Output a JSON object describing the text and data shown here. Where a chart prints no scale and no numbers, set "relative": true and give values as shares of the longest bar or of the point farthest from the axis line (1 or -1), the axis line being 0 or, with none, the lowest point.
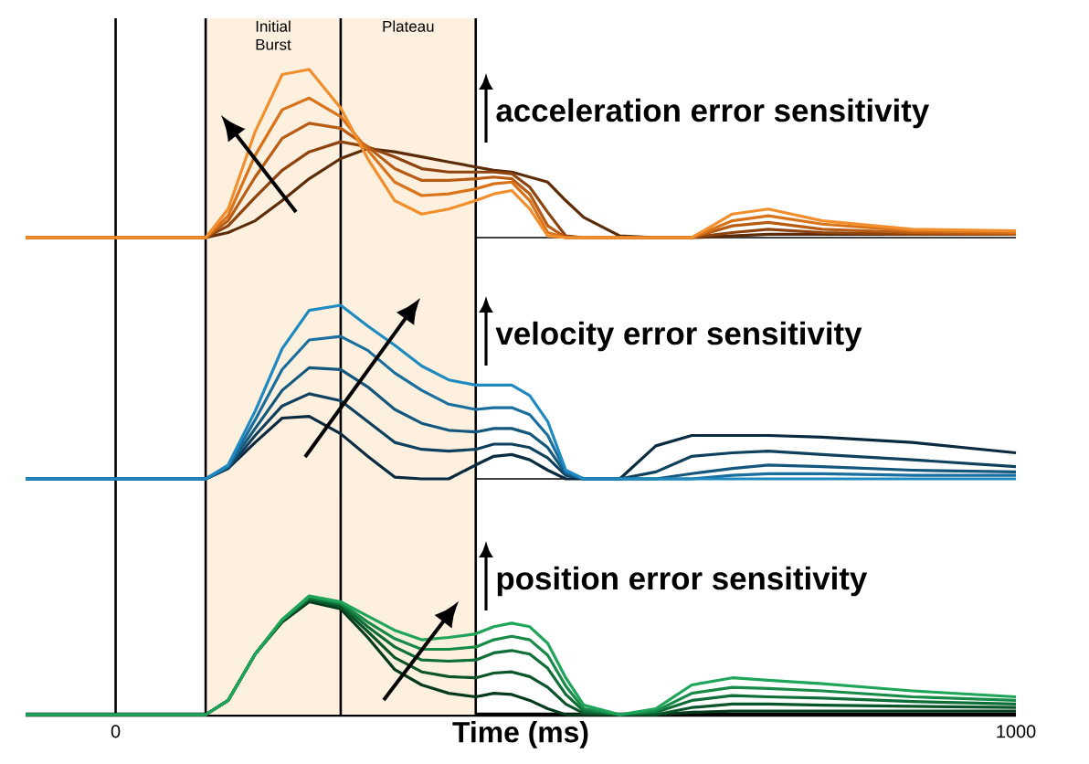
{
  "chart_data": [
    {
      "type": "line",
      "relative": true,
      "xlim": [
        -100,
        1000
      ],
      "tick_labels": false,
      "x": [
        -100,
        100,
        125,
        155,
        185,
        215,
        250,
        280,
        310,
        340,
        370,
        400,
        420,
        440,
        460,
        480,
        500,
        520,
        560,
        600,
        640,
        685,
        725,
        785,
        885,
        1000
      ],
      "series": [
        {
          "color": "#5c2c08",
          "values": [
            0,
            0,
            0.03,
            0.1,
            0.22,
            0.35,
            0.47,
            0.53,
            0.51,
            0.48,
            0.45,
            0.42,
            0.4,
            0.39,
            0.36,
            0.33,
            0.22,
            0.12,
            0.01,
            0,
            0,
            0.01,
            0.02,
            0.02,
            0.02,
            0.02
          ]
        },
        {
          "color": "#8f4410",
          "values": [
            0,
            0,
            0.07,
            0.24,
            0.4,
            0.51,
            0.57,
            0.54,
            0.48,
            0.41,
            0.39,
            0.39,
            0.39,
            0.38,
            0.3,
            0.15,
            0.01,
            0,
            0,
            0,
            0,
            0.03,
            0.05,
            0.03,
            0.02,
            0.02
          ]
        },
        {
          "color": "#b85c14",
          "values": [
            0,
            0,
            0.1,
            0.36,
            0.59,
            0.68,
            0.65,
            0.54,
            0.41,
            0.34,
            0.34,
            0.35,
            0.36,
            0.35,
            0.26,
            0.07,
            0,
            0,
            0,
            0,
            0,
            0.07,
            0.09,
            0.05,
            0.03,
            0.02
          ]
        },
        {
          "color": "#d9731a",
          "values": [
            0,
            0,
            0.13,
            0.49,
            0.76,
            0.83,
            0.72,
            0.52,
            0.33,
            0.25,
            0.26,
            0.29,
            0.32,
            0.33,
            0.22,
            0.03,
            0,
            0,
            0,
            0,
            0,
            0.1,
            0.13,
            0.08,
            0.04,
            0.03
          ]
        },
        {
          "color": "#f28e2b",
          "values": [
            0,
            0,
            0.17,
            0.63,
            0.97,
            1,
            0.77,
            0.47,
            0.22,
            0.14,
            0.17,
            0.22,
            0.26,
            0.28,
            0.17,
            0.01,
            0,
            0,
            0,
            0,
            0,
            0.14,
            0.17,
            0.1,
            0.05,
            0.04
          ]
        }
      ],
      "bands": [
        {
          "axis": "x",
          "from": 100,
          "to": 250,
          "label": "Initial Burst",
          "color": "#fdf0df"
        },
        {
          "axis": "x",
          "from": 250,
          "to": 400,
          "label": "Plateau",
          "color": "#fdf0df"
        }
      ],
      "ref_lines": [
        {
          "axis": "x",
          "value": 0
        },
        {
          "axis": "x",
          "value": 100
        },
        {
          "axis": "x",
          "value": 250
        },
        {
          "axis": "x",
          "value": 400
        }
      ],
      "annotations": [
        "acceleration error sensitivity"
      ]
    },
    {
      "type": "line",
      "relative": true,
      "xlim": [
        -100,
        1000
      ],
      "tick_labels": false,
      "x": [
        -100,
        100,
        125,
        155,
        185,
        215,
        250,
        280,
        310,
        340,
        370,
        400,
        420,
        440,
        460,
        480,
        500,
        520,
        560,
        600,
        640,
        685,
        725,
        785,
        885,
        1000
      ],
      "series": [
        {
          "color": "#0a2a40",
          "values": [
            0,
            0,
            0.06,
            0.21,
            0.35,
            0.36,
            0.26,
            0.13,
            0.01,
            0,
            0,
            0.08,
            0.13,
            0.14,
            0.11,
            0.05,
            0,
            0,
            0,
            0.19,
            0.25,
            0.25,
            0.25,
            0.24,
            0.21,
            0.15
          ]
        },
        {
          "color": "#0f405e",
          "values": [
            0,
            0,
            0.06,
            0.25,
            0.42,
            0.49,
            0.45,
            0.33,
            0.21,
            0.17,
            0.16,
            0.17,
            0.2,
            0.2,
            0.18,
            0.12,
            0.02,
            0,
            0,
            0.04,
            0.13,
            0.15,
            0.16,
            0.14,
            0.11,
            0.07
          ]
        },
        {
          "color": "#14577d",
          "values": [
            0,
            0,
            0.07,
            0.29,
            0.51,
            0.64,
            0.63,
            0.53,
            0.4,
            0.32,
            0.28,
            0.27,
            0.29,
            0.29,
            0.26,
            0.18,
            0.03,
            0,
            0,
            0,
            0.03,
            0.06,
            0.08,
            0.07,
            0.05,
            0.04
          ]
        },
        {
          "color": "#1a6e9e",
          "values": [
            0,
            0,
            0.07,
            0.34,
            0.63,
            0.8,
            0.82,
            0.74,
            0.61,
            0.51,
            0.43,
            0.4,
            0.41,
            0.41,
            0.37,
            0.25,
            0.04,
            0,
            0,
            0,
            0,
            0.02,
            0.03,
            0.03,
            0.02,
            0.02
          ]
        },
        {
          "color": "#1f8ac0",
          "values": [
            0,
            0,
            0.08,
            0.39,
            0.75,
            0.97,
            1,
            0.88,
            0.77,
            0.65,
            0.57,
            0.54,
            0.54,
            0.54,
            0.48,
            0.33,
            0.05,
            0,
            0,
            0,
            0,
            0,
            0,
            0,
            0,
            0
          ]
        }
      ],
      "bands": [
        {
          "axis": "x",
          "from": 100,
          "to": 250,
          "color": "#fdf0df"
        },
        {
          "axis": "x",
          "from": 250,
          "to": 400,
          "color": "#fdf0df"
        }
      ],
      "ref_lines": [
        {
          "axis": "x",
          "value": 0
        },
        {
          "axis": "x",
          "value": 100
        },
        {
          "axis": "x",
          "value": 250
        },
        {
          "axis": "x",
          "value": 400
        }
      ],
      "annotations": [
        "velocity error sensitivity"
      ]
    },
    {
      "type": "line",
      "relative": true,
      "xlim": [
        -100,
        1000
      ],
      "xticks": [
        0,
        1000
      ],
      "tick_labels": "x",
      "xlabel": "Time (ms)",
      "x": [
        -100,
        100,
        125,
        155,
        185,
        215,
        250,
        280,
        310,
        340,
        370,
        400,
        420,
        440,
        460,
        480,
        500,
        520,
        560,
        600,
        640,
        685,
        725,
        785,
        885,
        1000
      ],
      "series": [
        {
          "color": "#053b1c",
          "values": [
            0,
            0,
            0.12,
            0.51,
            0.78,
            0.95,
            0.89,
            0.65,
            0.38,
            0.25,
            0.18,
            0.15,
            0.18,
            0.17,
            0.12,
            0.05,
            0,
            0,
            0,
            0,
            0.02,
            0.03,
            0.03,
            0.03,
            0.03,
            0.03
          ]
        },
        {
          "color": "#0a5429",
          "values": [
            0,
            0,
            0.12,
            0.51,
            0.79,
            0.97,
            0.91,
            0.7,
            0.48,
            0.36,
            0.32,
            0.31,
            0.35,
            0.36,
            0.32,
            0.23,
            0.09,
            0.01,
            0,
            0,
            0.06,
            0.09,
            0.09,
            0.08,
            0.07,
            0.06
          ]
        },
        {
          "color": "#0f6e38",
          "values": [
            0,
            0,
            0.12,
            0.51,
            0.79,
            0.98,
            0.93,
            0.74,
            0.57,
            0.46,
            0.45,
            0.46,
            0.52,
            0.54,
            0.51,
            0.39,
            0.17,
            0.03,
            0,
            0.02,
            0.12,
            0.16,
            0.15,
            0.14,
            0.11,
            0.09
          ]
        },
        {
          "color": "#178a48",
          "values": [
            0,
            0,
            0.12,
            0.51,
            0.8,
            0.99,
            0.94,
            0.78,
            0.64,
            0.55,
            0.55,
            0.57,
            0.63,
            0.66,
            0.63,
            0.5,
            0.24,
            0.05,
            0,
            0.03,
            0.18,
            0.23,
            0.22,
            0.2,
            0.15,
            0.12
          ]
        },
        {
          "color": "#1fa55a",
          "values": [
            0,
            0,
            0.12,
            0.51,
            0.8,
            1,
            0.95,
            0.83,
            0.71,
            0.63,
            0.65,
            0.68,
            0.74,
            0.77,
            0.74,
            0.6,
            0.31,
            0.08,
            0,
            0.05,
            0.25,
            0.31,
            0.29,
            0.26,
            0.2,
            0.15
          ]
        }
      ],
      "bands": [
        {
          "axis": "x",
          "from": 100,
          "to": 250,
          "color": "#fdf0df"
        },
        {
          "axis": "x",
          "from": 250,
          "to": 400,
          "color": "#fdf0df"
        }
      ],
      "ref_lines": [
        {
          "axis": "x",
          "value": 0
        },
        {
          "axis": "x",
          "value": 100
        },
        {
          "axis": "x",
          "value": 250
        },
        {
          "axis": "x",
          "value": 400
        }
      ],
      "annotations": [
        "position error sensitivity"
      ]
    }
  ]
}
